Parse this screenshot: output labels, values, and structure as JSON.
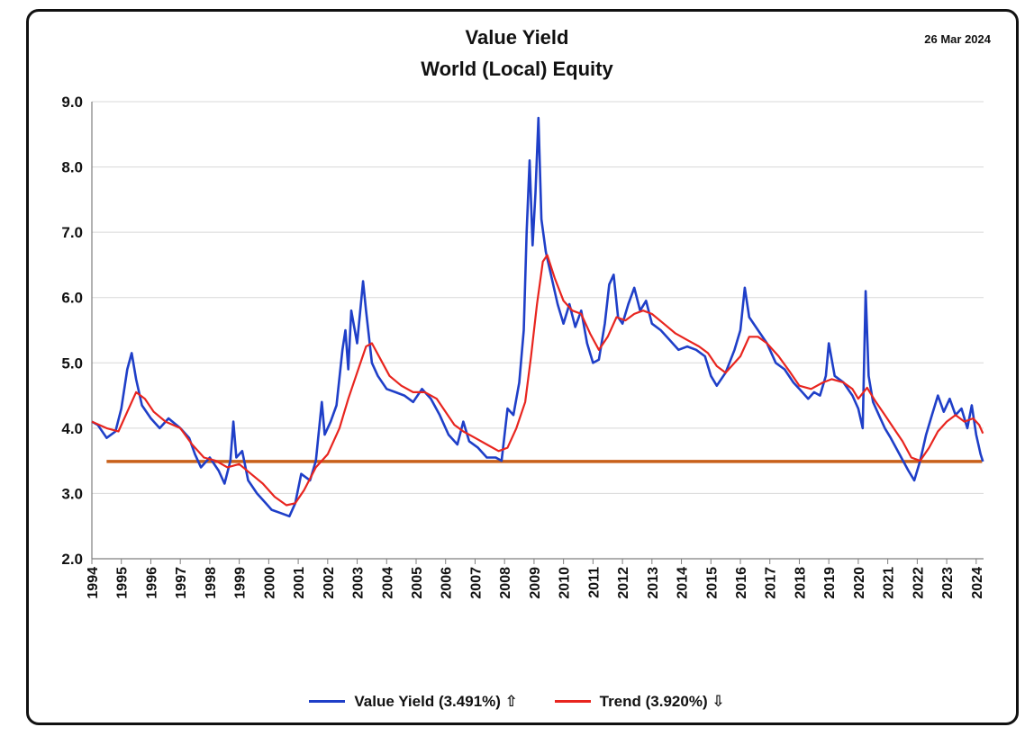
{
  "chart_data": {
    "type": "line",
    "title": "Value Yield",
    "subtitle": "World (Local) Equity",
    "date": "26 Mar 2024",
    "xlabel": "",
    "ylabel": "",
    "xlim": [
      1994,
      2024.25
    ],
    "ylim": [
      2.0,
      9.0
    ],
    "y_ticks": [
      "2.0",
      "3.0",
      "4.0",
      "5.0",
      "6.0",
      "7.0",
      "8.0",
      "9.0"
    ],
    "x_ticks": [
      "1994",
      "1995",
      "1996",
      "1997",
      "1998",
      "1999",
      "2000",
      "2001",
      "2002",
      "2003",
      "2004",
      "2005",
      "2006",
      "2007",
      "2008",
      "2009",
      "2010",
      "2011",
      "2012",
      "2013",
      "2014",
      "2015",
      "2016",
      "2017",
      "2018",
      "2019",
      "2020",
      "2021",
      "2022",
      "2023",
      "2024"
    ],
    "grid": true,
    "legend_position": "bottom",
    "series": [
      {
        "name": "Value Yield (3.491%) ⇧",
        "color": "#1f3fc8",
        "points": [
          [
            1994.0,
            4.1
          ],
          [
            1994.2,
            4.05
          ],
          [
            1994.5,
            3.85
          ],
          [
            1994.8,
            3.95
          ],
          [
            1995.0,
            4.3
          ],
          [
            1995.2,
            4.9
          ],
          [
            1995.35,
            5.15
          ],
          [
            1995.5,
            4.75
          ],
          [
            1995.7,
            4.35
          ],
          [
            1996.0,
            4.15
          ],
          [
            1996.3,
            4.0
          ],
          [
            1996.6,
            4.15
          ],
          [
            1997.0,
            4.0
          ],
          [
            1997.3,
            3.85
          ],
          [
            1997.5,
            3.6
          ],
          [
            1997.7,
            3.4
          ],
          [
            1998.0,
            3.55
          ],
          [
            1998.3,
            3.35
          ],
          [
            1998.5,
            3.15
          ],
          [
            1998.7,
            3.5
          ],
          [
            1998.8,
            4.1
          ],
          [
            1998.9,
            3.55
          ],
          [
            1999.1,
            3.65
          ],
          [
            1999.3,
            3.2
          ],
          [
            1999.6,
            3.0
          ],
          [
            1999.9,
            2.85
          ],
          [
            2000.1,
            2.75
          ],
          [
            2000.4,
            2.7
          ],
          [
            2000.7,
            2.65
          ],
          [
            2000.9,
            2.85
          ],
          [
            2001.1,
            3.3
          ],
          [
            2001.4,
            3.2
          ],
          [
            2001.6,
            3.5
          ],
          [
            2001.8,
            4.4
          ],
          [
            2001.9,
            3.9
          ],
          [
            2002.1,
            4.1
          ],
          [
            2002.3,
            4.35
          ],
          [
            2002.5,
            5.2
          ],
          [
            2002.6,
            5.5
          ],
          [
            2002.7,
            4.9
          ],
          [
            2002.8,
            5.8
          ],
          [
            2003.0,
            5.3
          ],
          [
            2003.2,
            6.25
          ],
          [
            2003.3,
            5.8
          ],
          [
            2003.5,
            5.0
          ],
          [
            2003.7,
            4.8
          ],
          [
            2004.0,
            4.6
          ],
          [
            2004.3,
            4.55
          ],
          [
            2004.6,
            4.5
          ],
          [
            2004.9,
            4.4
          ],
          [
            2005.2,
            4.6
          ],
          [
            2005.5,
            4.45
          ],
          [
            2005.8,
            4.2
          ],
          [
            2006.1,
            3.9
          ],
          [
            2006.4,
            3.75
          ],
          [
            2006.6,
            4.1
          ],
          [
            2006.8,
            3.8
          ],
          [
            2007.1,
            3.7
          ],
          [
            2007.4,
            3.55
          ],
          [
            2007.7,
            3.55
          ],
          [
            2007.9,
            3.5
          ],
          [
            2008.1,
            4.3
          ],
          [
            2008.3,
            4.2
          ],
          [
            2008.5,
            4.7
          ],
          [
            2008.65,
            5.5
          ],
          [
            2008.75,
            7.0
          ],
          [
            2008.85,
            8.1
          ],
          [
            2008.95,
            6.8
          ],
          [
            2009.05,
            7.6
          ],
          [
            2009.15,
            8.75
          ],
          [
            2009.25,
            7.2
          ],
          [
            2009.4,
            6.7
          ],
          [
            2009.6,
            6.3
          ],
          [
            2009.8,
            5.9
          ],
          [
            2010.0,
            5.6
          ],
          [
            2010.2,
            5.9
          ],
          [
            2010.4,
            5.55
          ],
          [
            2010.6,
            5.8
          ],
          [
            2010.8,
            5.3
          ],
          [
            2011.0,
            5.0
          ],
          [
            2011.2,
            5.05
          ],
          [
            2011.4,
            5.6
          ],
          [
            2011.55,
            6.2
          ],
          [
            2011.7,
            6.35
          ],
          [
            2011.85,
            5.7
          ],
          [
            2012.0,
            5.6
          ],
          [
            2012.2,
            5.9
          ],
          [
            2012.4,
            6.15
          ],
          [
            2012.6,
            5.8
          ],
          [
            2012.8,
            5.95
          ],
          [
            2013.0,
            5.6
          ],
          [
            2013.3,
            5.5
          ],
          [
            2013.6,
            5.35
          ],
          [
            2013.9,
            5.2
          ],
          [
            2014.2,
            5.25
          ],
          [
            2014.5,
            5.2
          ],
          [
            2014.8,
            5.1
          ],
          [
            2015.0,
            4.8
          ],
          [
            2015.2,
            4.65
          ],
          [
            2015.5,
            4.85
          ],
          [
            2015.8,
            5.2
          ],
          [
            2016.0,
            5.5
          ],
          [
            2016.15,
            6.15
          ],
          [
            2016.3,
            5.7
          ],
          [
            2016.6,
            5.5
          ],
          [
            2016.9,
            5.3
          ],
          [
            2017.2,
            5.0
          ],
          [
            2017.5,
            4.9
          ],
          [
            2017.8,
            4.7
          ],
          [
            2018.0,
            4.6
          ],
          [
            2018.3,
            4.45
          ],
          [
            2018.5,
            4.55
          ],
          [
            2018.7,
            4.5
          ],
          [
            2018.9,
            4.8
          ],
          [
            2019.0,
            5.3
          ],
          [
            2019.2,
            4.8
          ],
          [
            2019.5,
            4.7
          ],
          [
            2019.8,
            4.5
          ],
          [
            2020.0,
            4.3
          ],
          [
            2020.15,
            4.0
          ],
          [
            2020.25,
            6.1
          ],
          [
            2020.35,
            4.8
          ],
          [
            2020.5,
            4.4
          ],
          [
            2020.7,
            4.2
          ],
          [
            2020.9,
            4.0
          ],
          [
            2021.1,
            3.85
          ],
          [
            2021.4,
            3.6
          ],
          [
            2021.7,
            3.35
          ],
          [
            2021.9,
            3.2
          ],
          [
            2022.1,
            3.5
          ],
          [
            2022.3,
            3.9
          ],
          [
            2022.5,
            4.2
          ],
          [
            2022.7,
            4.5
          ],
          [
            2022.9,
            4.25
          ],
          [
            2023.1,
            4.45
          ],
          [
            2023.3,
            4.2
          ],
          [
            2023.5,
            4.3
          ],
          [
            2023.7,
            4.0
          ],
          [
            2023.85,
            4.35
          ],
          [
            2024.0,
            3.9
          ],
          [
            2024.15,
            3.6
          ],
          [
            2024.23,
            3.49
          ]
        ]
      },
      {
        "name": "Trend  (3.920%) ⇩",
        "color": "#e8251f",
        "points": [
          [
            1994.0,
            4.1
          ],
          [
            1994.5,
            4.0
          ],
          [
            1994.9,
            3.95
          ],
          [
            1995.2,
            4.25
          ],
          [
            1995.5,
            4.55
          ],
          [
            1995.8,
            4.45
          ],
          [
            1996.1,
            4.25
          ],
          [
            1996.5,
            4.1
          ],
          [
            1997.0,
            4.0
          ],
          [
            1997.4,
            3.75
          ],
          [
            1997.8,
            3.55
          ],
          [
            1998.2,
            3.5
          ],
          [
            1998.6,
            3.4
          ],
          [
            1999.0,
            3.45
          ],
          [
            1999.4,
            3.3
          ],
          [
            1999.8,
            3.15
          ],
          [
            2000.2,
            2.95
          ],
          [
            2000.6,
            2.82
          ],
          [
            2000.9,
            2.85
          ],
          [
            2001.2,
            3.05
          ],
          [
            2001.6,
            3.4
          ],
          [
            2002.0,
            3.6
          ],
          [
            2002.4,
            4.0
          ],
          [
            2002.7,
            4.45
          ],
          [
            2003.0,
            4.85
          ],
          [
            2003.3,
            5.25
          ],
          [
            2003.5,
            5.3
          ],
          [
            2003.8,
            5.05
          ],
          [
            2004.1,
            4.8
          ],
          [
            2004.5,
            4.65
          ],
          [
            2004.9,
            4.55
          ],
          [
            2005.3,
            4.55
          ],
          [
            2005.7,
            4.45
          ],
          [
            2006.0,
            4.25
          ],
          [
            2006.3,
            4.05
          ],
          [
            2006.6,
            3.95
          ],
          [
            2007.0,
            3.85
          ],
          [
            2007.4,
            3.75
          ],
          [
            2007.8,
            3.65
          ],
          [
            2008.1,
            3.7
          ],
          [
            2008.4,
            4.0
          ],
          [
            2008.7,
            4.4
          ],
          [
            2008.9,
            5.1
          ],
          [
            2009.1,
            5.9
          ],
          [
            2009.3,
            6.55
          ],
          [
            2009.45,
            6.65
          ],
          [
            2009.7,
            6.3
          ],
          [
            2010.0,
            5.95
          ],
          [
            2010.3,
            5.8
          ],
          [
            2010.6,
            5.75
          ],
          [
            2010.9,
            5.45
          ],
          [
            2011.2,
            5.2
          ],
          [
            2011.5,
            5.4
          ],
          [
            2011.8,
            5.7
          ],
          [
            2012.1,
            5.65
          ],
          [
            2012.4,
            5.75
          ],
          [
            2012.7,
            5.8
          ],
          [
            2013.0,
            5.75
          ],
          [
            2013.4,
            5.6
          ],
          [
            2013.8,
            5.45
          ],
          [
            2014.2,
            5.35
          ],
          [
            2014.6,
            5.25
          ],
          [
            2014.9,
            5.15
          ],
          [
            2015.2,
            4.95
          ],
          [
            2015.5,
            4.85
          ],
          [
            2015.8,
            5.0
          ],
          [
            2016.0,
            5.1
          ],
          [
            2016.3,
            5.4
          ],
          [
            2016.6,
            5.4
          ],
          [
            2016.9,
            5.3
          ],
          [
            2017.3,
            5.1
          ],
          [
            2017.7,
            4.85
          ],
          [
            2018.0,
            4.65
          ],
          [
            2018.4,
            4.6
          ],
          [
            2018.8,
            4.7
          ],
          [
            2019.1,
            4.75
          ],
          [
            2019.5,
            4.7
          ],
          [
            2019.8,
            4.6
          ],
          [
            2020.0,
            4.45
          ],
          [
            2020.3,
            4.62
          ],
          [
            2020.6,
            4.4
          ],
          [
            2020.9,
            4.2
          ],
          [
            2021.2,
            4.0
          ],
          [
            2021.5,
            3.8
          ],
          [
            2021.8,
            3.55
          ],
          [
            2022.1,
            3.5
          ],
          [
            2022.4,
            3.7
          ],
          [
            2022.7,
            3.95
          ],
          [
            2023.0,
            4.1
          ],
          [
            2023.3,
            4.2
          ],
          [
            2023.6,
            4.1
          ],
          [
            2023.9,
            4.15
          ],
          [
            2024.1,
            4.05
          ],
          [
            2024.23,
            3.92
          ]
        ]
      }
    ],
    "reference_line": {
      "value": 3.49,
      "color": "#c8601a",
      "x_range": [
        1994.5,
        2024.2
      ]
    },
    "legend": [
      {
        "label": "Value Yield (3.491%) ⇧",
        "color": "#1f3fc8"
      },
      {
        "label": "Trend  (3.920%) ⇩",
        "color": "#e8251f"
      }
    ],
    "grid_color": "#d8d8d8",
    "axis_color": "#7f7f7f"
  }
}
